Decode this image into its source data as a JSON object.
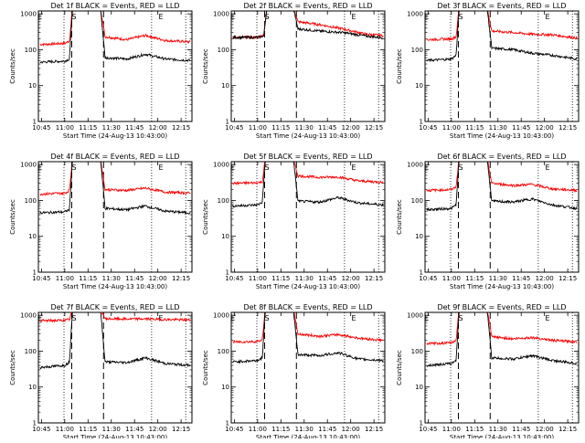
{
  "chart_data": {
    "type": "line",
    "x_tick_labels": [
      "10:45",
      "11:00",
      "11:15",
      "11:30",
      "11:45",
      "12:00",
      "12:15"
    ],
    "x_tick_minutes": [
      645,
      660,
      675,
      690,
      705,
      720,
      735
    ],
    "x_range_minutes": [
      643,
      742
    ],
    "y_tick_labels": [
      "1",
      "10",
      "100",
      "1000"
    ],
    "y_range": [
      1,
      1200
    ],
    "y_scale": "log",
    "ylabel": "Counts/sec",
    "xlabel": "Start Time (24-Aug-13 10:43:00)",
    "markers": [
      {
        "label": "E",
        "minute": 644
      },
      {
        "label": "S",
        "minute": 666
      },
      {
        "label": "E",
        "minute": 722
      }
    ],
    "dotted_lines_minutes": [
      659.5,
      716,
      738
    ],
    "dashed_lines_minutes": [
      664.5,
      685
    ],
    "series_colors": {
      "events": "#000000",
      "lld": "#ff0000"
    },
    "panels": [
      {
        "title": "Det 1f BLACK = Events, RED = LLD",
        "lld": [
          [
            644,
            140
          ],
          [
            660,
            150
          ],
          [
            663,
            175
          ],
          [
            665,
            1500
          ],
          [
            683,
            1500
          ],
          [
            686,
            230
          ],
          [
            700,
            190
          ],
          [
            712,
            250
          ],
          [
            725,
            180
          ],
          [
            741,
            165
          ]
        ],
        "events": [
          [
            644,
            45
          ],
          [
            660,
            48
          ],
          [
            663,
            55
          ],
          [
            665,
            1500
          ],
          [
            683,
            1500
          ],
          [
            686,
            60
          ],
          [
            700,
            55
          ],
          [
            712,
            75
          ],
          [
            725,
            55
          ],
          [
            741,
            50
          ]
        ]
      },
      {
        "title": "Det 2f BLACK = Events, RED = LLD",
        "lld": [
          [
            644,
            220
          ],
          [
            660,
            220
          ],
          [
            664,
            260
          ],
          [
            666,
            1500
          ],
          [
            683,
            1500
          ],
          [
            686,
            600
          ],
          [
            700,
            500
          ],
          [
            715,
            380
          ],
          [
            730,
            270
          ],
          [
            741,
            245
          ]
        ],
        "events": [
          [
            644,
            220
          ],
          [
            660,
            220
          ],
          [
            664,
            240
          ],
          [
            666,
            1500
          ],
          [
            683,
            1500
          ],
          [
            686,
            380
          ],
          [
            700,
            330
          ],
          [
            715,
            300
          ],
          [
            730,
            240
          ],
          [
            741,
            215
          ]
        ]
      },
      {
        "title": "Det 3f BLACK = Events, RED = LLD",
        "lld": [
          [
            644,
            190
          ],
          [
            660,
            200
          ],
          [
            663,
            230
          ],
          [
            665,
            1500
          ],
          [
            683,
            1500
          ],
          [
            686,
            330
          ],
          [
            700,
            300
          ],
          [
            712,
            270
          ],
          [
            725,
            260
          ],
          [
            741,
            210
          ]
        ],
        "events": [
          [
            644,
            50
          ],
          [
            660,
            55
          ],
          [
            663,
            70
          ],
          [
            665,
            1500
          ],
          [
            683,
            1500
          ],
          [
            686,
            110
          ],
          [
            700,
            100
          ],
          [
            712,
            80
          ],
          [
            725,
            70
          ],
          [
            741,
            55
          ]
        ]
      },
      {
        "title": "Det 4f BLACK = Events, RED = LLD",
        "lld": [
          [
            644,
            150
          ],
          [
            660,
            160
          ],
          [
            663,
            190
          ],
          [
            665,
            1500
          ],
          [
            683,
            1500
          ],
          [
            686,
            200
          ],
          [
            700,
            190
          ],
          [
            712,
            220
          ],
          [
            725,
            170
          ],
          [
            741,
            160
          ]
        ],
        "events": [
          [
            644,
            45
          ],
          [
            660,
            48
          ],
          [
            663,
            55
          ],
          [
            665,
            1500
          ],
          [
            683,
            1500
          ],
          [
            686,
            60
          ],
          [
            700,
            55
          ],
          [
            712,
            70
          ],
          [
            725,
            50
          ],
          [
            741,
            45
          ]
        ]
      },
      {
        "title": "Det 5f BLACK = Events, RED = LLD",
        "lld": [
          [
            644,
            300
          ],
          [
            660,
            310
          ],
          [
            663,
            330
          ],
          [
            665,
            1500
          ],
          [
            683,
            1500
          ],
          [
            686,
            480
          ],
          [
            700,
            440
          ],
          [
            712,
            450
          ],
          [
            725,
            350
          ],
          [
            741,
            320
          ]
        ],
        "events": [
          [
            644,
            70
          ],
          [
            660,
            75
          ],
          [
            663,
            90
          ],
          [
            665,
            1500
          ],
          [
            683,
            1500
          ],
          [
            686,
            95
          ],
          [
            700,
            90
          ],
          [
            712,
            120
          ],
          [
            725,
            85
          ],
          [
            741,
            75
          ]
        ]
      },
      {
        "title": "Det 6f BLACK = Events, RED = LLD",
        "lld": [
          [
            644,
            190
          ],
          [
            660,
            200
          ],
          [
            663,
            240
          ],
          [
            665,
            1500
          ],
          [
            683,
            1500
          ],
          [
            686,
            300
          ],
          [
            700,
            260
          ],
          [
            712,
            280
          ],
          [
            725,
            210
          ],
          [
            741,
            190
          ]
        ],
        "events": [
          [
            644,
            55
          ],
          [
            660,
            60
          ],
          [
            663,
            75
          ],
          [
            665,
            1500
          ],
          [
            683,
            1500
          ],
          [
            686,
            95
          ],
          [
            700,
            90
          ],
          [
            712,
            110
          ],
          [
            725,
            75
          ],
          [
            741,
            60
          ]
        ]
      },
      {
        "title": "Det 7f BLACK = Events, RED = LLD",
        "lld": [
          [
            644,
            700
          ],
          [
            660,
            720
          ],
          [
            663,
            760
          ],
          [
            665,
            1500
          ],
          [
            683,
            1500
          ],
          [
            686,
            800
          ],
          [
            700,
            780
          ],
          [
            712,
            790
          ],
          [
            725,
            760
          ],
          [
            741,
            740
          ]
        ],
        "events": [
          [
            644,
            35
          ],
          [
            660,
            40
          ],
          [
            663,
            50
          ],
          [
            665,
            1500
          ],
          [
            683,
            1500
          ],
          [
            686,
            50
          ],
          [
            700,
            48
          ],
          [
            712,
            65
          ],
          [
            725,
            45
          ],
          [
            741,
            40
          ]
        ]
      },
      {
        "title": "Det 8f BLACK = Events, RED = LLD",
        "lld": [
          [
            644,
            180
          ],
          [
            660,
            185
          ],
          [
            663,
            210
          ],
          [
            665,
            1500
          ],
          [
            683,
            1500
          ],
          [
            686,
            300
          ],
          [
            700,
            260
          ],
          [
            712,
            290
          ],
          [
            725,
            230
          ],
          [
            741,
            200
          ]
        ],
        "events": [
          [
            644,
            50
          ],
          [
            660,
            55
          ],
          [
            663,
            65
          ],
          [
            665,
            1500
          ],
          [
            683,
            1500
          ],
          [
            686,
            80
          ],
          [
            700,
            75
          ],
          [
            712,
            90
          ],
          [
            725,
            60
          ],
          [
            741,
            55
          ]
        ]
      },
      {
        "title": "Det 9f BLACK = Events, RED = LLD",
        "lld": [
          [
            644,
            160
          ],
          [
            660,
            170
          ],
          [
            663,
            200
          ],
          [
            665,
            1500
          ],
          [
            683,
            1500
          ],
          [
            686,
            250
          ],
          [
            700,
            220
          ],
          [
            712,
            240
          ],
          [
            725,
            200
          ],
          [
            741,
            180
          ]
        ],
        "events": [
          [
            644,
            40
          ],
          [
            660,
            45
          ],
          [
            663,
            55
          ],
          [
            665,
            1500
          ],
          [
            683,
            1500
          ],
          [
            686,
            65
          ],
          [
            700,
            60
          ],
          [
            712,
            75
          ],
          [
            725,
            55
          ],
          [
            741,
            45
          ]
        ]
      }
    ]
  }
}
